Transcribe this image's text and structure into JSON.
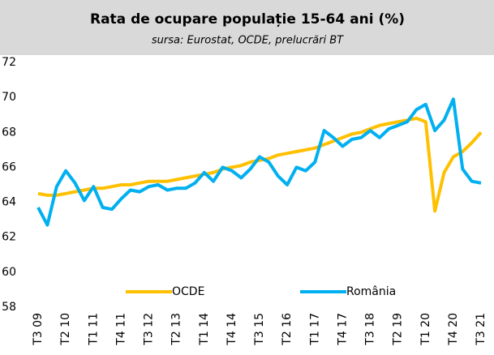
{
  "chart_data": {
    "type": "line",
    "title": "Rata de ocupare populație 15-64 ani (%)",
    "subtitle": "sursa: Eurostat, OCDE, prelucrări BT",
    "categories": [
      "T3 09",
      null,
      null,
      "T2 10",
      null,
      null,
      "T1 11",
      null,
      null,
      "T4 11",
      null,
      null,
      "T3 12",
      null,
      null,
      "T2 13",
      null,
      null,
      "T1 14",
      null,
      null,
      "T4 14",
      null,
      null,
      "T3 15",
      null,
      null,
      "T2 16",
      null,
      null,
      "T1 17",
      null,
      null,
      "T4 17",
      null,
      null,
      "T3 18",
      null,
      null,
      "T2 19",
      null,
      null,
      "T1 20",
      null,
      null,
      "T4 20",
      null,
      null,
      "T3 21"
    ],
    "series": [
      {
        "name": "OCDE",
        "color": "#ffc000",
        "values": [
          64.5,
          64.4,
          64.4,
          64.5,
          64.6,
          64.7,
          64.8,
          64.8,
          64.9,
          65.0,
          65.0,
          65.1,
          65.2,
          65.2,
          65.2,
          65.3,
          65.4,
          65.5,
          65.6,
          65.7,
          65.9,
          66.0,
          66.1,
          66.3,
          66.4,
          66.5,
          66.7,
          66.8,
          66.9,
          67.0,
          67.1,
          67.3,
          67.5,
          67.7,
          67.9,
          68.0,
          68.2,
          68.4,
          68.5,
          68.6,
          68.7,
          68.8,
          68.6,
          63.5,
          65.7,
          66.6,
          66.9,
          67.4,
          68.0
        ]
      },
      {
        "name": "România",
        "color": "#00b0f0",
        "values": [
          63.7,
          62.7,
          64.9,
          65.8,
          65.1,
          64.1,
          64.9,
          63.7,
          63.6,
          64.2,
          64.7,
          64.6,
          64.9,
          65.0,
          64.7,
          64.8,
          64.8,
          65.1,
          65.7,
          65.2,
          66.0,
          65.8,
          65.4,
          65.9,
          66.6,
          66.3,
          65.5,
          65.0,
          66.0,
          65.8,
          66.3,
          68.1,
          67.7,
          67.2,
          67.6,
          67.7,
          68.1,
          67.7,
          68.2,
          68.4,
          68.6,
          69.3,
          69.6,
          68.1,
          68.7,
          69.9,
          65.9,
          65.2,
          65.1
        ]
      }
    ],
    "ylim": [
      58,
      72
    ],
    "yticks": [
      58,
      60,
      62,
      64,
      66,
      68,
      70,
      72
    ],
    "legend": "bottom"
  }
}
